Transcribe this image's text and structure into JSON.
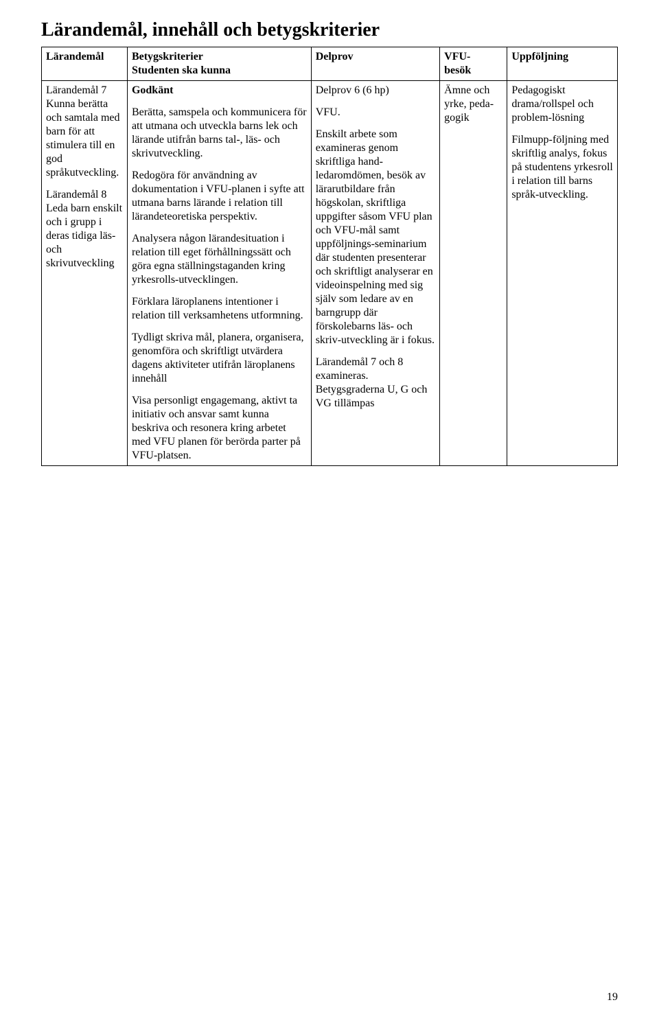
{
  "page": {
    "title": "Lärandemål, innehåll och betygskriterier",
    "page_number": "19"
  },
  "header": {
    "col1": "Lärandemål",
    "col2a": "Betygskriterier",
    "col2b": "Studenten ska kunna",
    "col3": "Delprov",
    "col4a": "VFU-",
    "col4b": "besök",
    "col5": "Uppföljning"
  },
  "row": {
    "larandemal": {
      "p1": "Lärandemål 7 Kunna berätta och samtala med barn för att stimulera till en god språkutveckling.",
      "p2": "Lärandemål 8 Leda barn enskilt och i grupp i deras tidiga läs- och skrivutveckling"
    },
    "betyg": {
      "godkant": "Godkänt",
      "b1": "Berätta, samspela och kommunicera för att utmana och utveckla barns lek och lärande utifrån barns tal-, läs- och skrivutveckling.",
      "b2": "Redogöra för användning av dokumentation i VFU-planen i syfte att utmana barns lärande i relation till lärandeteoretiska perspektiv.",
      "b3": "Analysera någon lärandesituation i relation till eget förhållningssätt och göra egna ställningstaganden kring yrkesrolls-utvecklingen.",
      "b4": "Förklara läroplanens intentioner i relation till verksamhetens utformning.",
      "b5": "Tydligt skriva mål, planera, organisera, genomföra och skriftligt utvärdera dagens aktiviteter utifrån läroplanens innehåll",
      "b6": "Visa personligt engagemang, aktivt ta initiativ och ansvar samt kunna beskriva och resonera kring arbetet med VFU planen för berörda parter på VFU-platsen."
    },
    "delprov": {
      "d1": "Delprov 6 (6 hp)",
      "d2": "VFU.",
      "d3": "Enskilt arbete som examineras genom skriftliga hand-ledaromdömen, besök av lärarutbildare från högskolan, skriftliga uppgifter såsom VFU plan och VFU-mål samt uppföljnings-seminarium där studenten presenterar och skriftligt analyserar en videoinspelning med sig själv som ledare av en barngrupp där förskolebarns läs- och skriv-utveckling är i fokus.",
      "d4": " Lärandemål 7 och 8 examineras. Betygsgraderna U, G och VG tillämpas"
    },
    "vfu": {
      "v1": "Ämne och yrke, peda-gogik"
    },
    "uppfoljning": {
      "u1": "Pedagogiskt drama/rollspel och problem-lösning",
      "u2": "Filmupp-följning med skriftlig analys, fokus på studentens yrkesroll i relation till barns språk-utveckling."
    }
  }
}
